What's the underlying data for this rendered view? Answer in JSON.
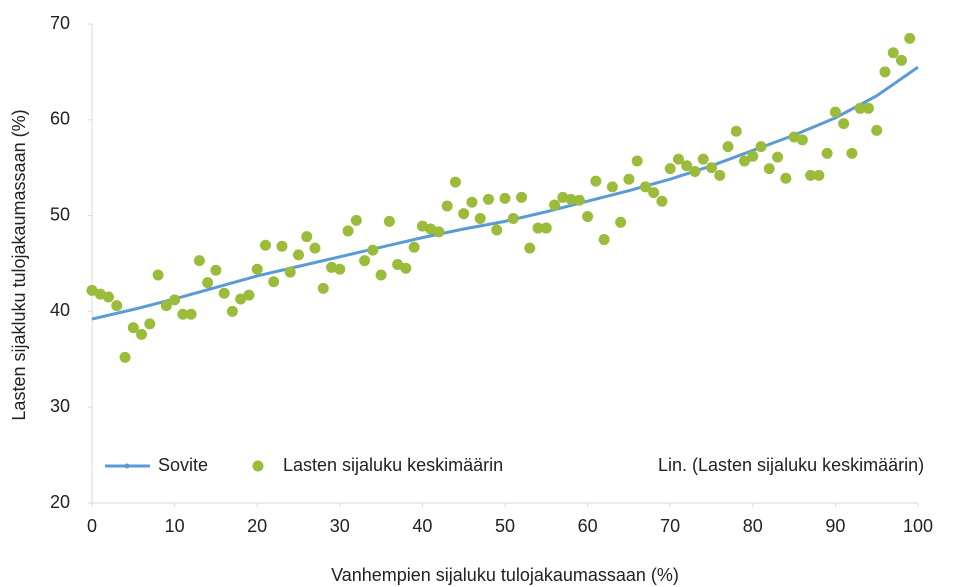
{
  "chart_data": {
    "type": "scatter",
    "xlabel": "Vanhempien sijaluku  tulojakaumassaan (%)",
    "ylabel": "Lasten sijakluku tulojakaumassaan (%)",
    "xlim": [
      0,
      100
    ],
    "ylim": [
      20,
      70
    ],
    "xticks": [
      0,
      10,
      20,
      30,
      40,
      50,
      60,
      70,
      80,
      90,
      100
    ],
    "yticks": [
      20,
      30,
      40,
      50,
      60,
      70
    ],
    "grid": false,
    "series": [
      {
        "name": "Sovite",
        "color": "#5b9bd5",
        "kind": "line",
        "x": [
          0,
          5,
          10,
          15,
          20,
          25,
          30,
          35,
          40,
          45,
          50,
          55,
          60,
          65,
          70,
          75,
          80,
          85,
          90,
          95,
          100
        ],
        "values": [
          39.2,
          40.2,
          41.3,
          42.5,
          43.7,
          44.7,
          45.7,
          46.7,
          47.7,
          48.6,
          49.4,
          50.4,
          51.5,
          52.6,
          53.8,
          55.2,
          56.8,
          58.4,
          60.2,
          62.5,
          65.5
        ]
      },
      {
        "name": "Lasten sijaluku keskimäärin",
        "color": "#9bbb3b",
        "kind": "points",
        "x": [
          0,
          1,
          2,
          3,
          4,
          5,
          6,
          7,
          8,
          9,
          10,
          11,
          12,
          13,
          14,
          15,
          16,
          17,
          18,
          19,
          20,
          21,
          22,
          23,
          24,
          25,
          26,
          27,
          28,
          29,
          30,
          31,
          32,
          33,
          34,
          35,
          36,
          37,
          38,
          39,
          40,
          41,
          42,
          43,
          44,
          45,
          46,
          47,
          48,
          49,
          50,
          51,
          52,
          53,
          54,
          55,
          56,
          57,
          58,
          59,
          60,
          61,
          62,
          63,
          64,
          65,
          66,
          67,
          68,
          69,
          70,
          71,
          72,
          73,
          74,
          75,
          76,
          77,
          78,
          79,
          80,
          81,
          82,
          83,
          84,
          85,
          86,
          87,
          88,
          89,
          90,
          91,
          92,
          93,
          94,
          95,
          96,
          97,
          98,
          99
        ],
        "values": [
          42.2,
          41.8,
          41.5,
          40.6,
          35.2,
          38.3,
          37.6,
          38.7,
          43.8,
          40.6,
          41.2,
          39.7,
          39.7,
          45.3,
          43.0,
          44.3,
          41.9,
          40.0,
          41.3,
          41.7,
          44.4,
          46.9,
          43.1,
          46.8,
          44.1,
          45.9,
          47.8,
          46.6,
          42.4,
          44.6,
          44.4,
          48.4,
          49.5,
          45.3,
          46.4,
          43.8,
          49.4,
          44.9,
          44.5,
          46.7,
          48.9,
          48.6,
          48.3,
          51.0,
          53.5,
          50.2,
          51.4,
          49.7,
          51.7,
          48.5,
          51.8,
          49.7,
          51.9,
          46.6,
          48.7,
          48.7,
          51.1,
          51.9,
          51.7,
          51.6,
          49.9,
          53.6,
          47.5,
          53.0,
          49.3,
          53.8,
          55.7,
          53.0,
          52.4,
          51.5,
          54.9,
          55.9,
          55.2,
          54.6,
          55.9,
          55.0,
          54.2,
          57.2,
          58.8,
          55.7,
          56.2,
          57.2,
          54.9,
          56.1,
          53.9,
          58.2,
          57.9,
          54.2,
          54.2,
          56.5,
          60.8,
          59.6,
          56.5,
          61.2,
          61.2,
          58.9,
          65.0,
          67.0,
          66.2,
          68.5
        ]
      }
    ],
    "trendline_legend": "Lin. (Lasten sijaluku keskimäärin)"
  }
}
